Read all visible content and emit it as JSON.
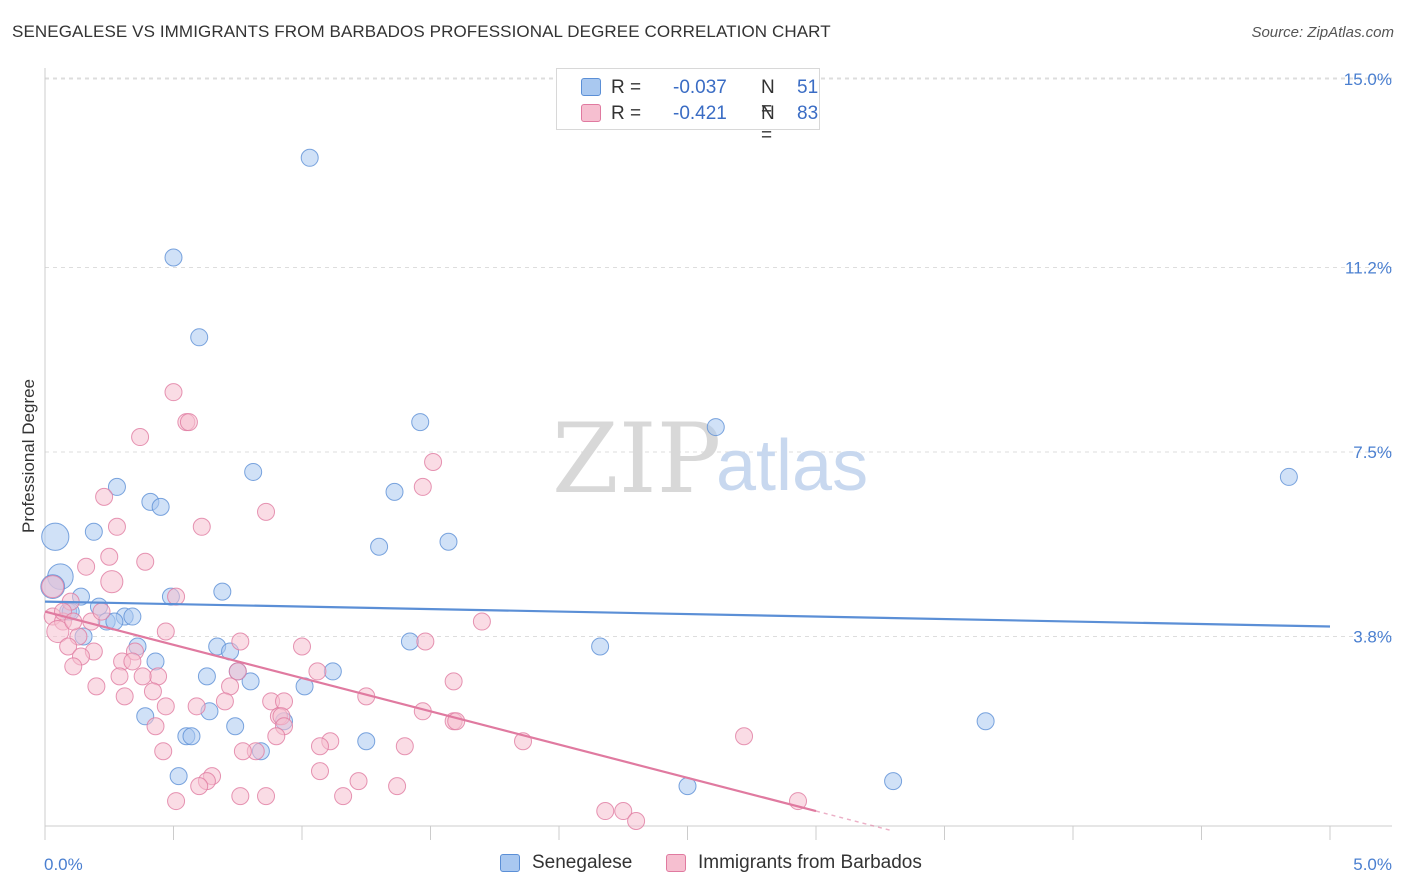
{
  "title": "SENEGALESE VS IMMIGRANTS FROM BARBADOS PROFESSIONAL DEGREE CORRELATION CHART",
  "source": "Source: ZipAtlas.com",
  "watermark": {
    "zip": "ZIP",
    "atlas": "atlas"
  },
  "legend": {
    "r_label": "R =",
    "n_label": "N =",
    "rows": [
      {
        "series": "Senegalese",
        "r": "-0.037",
        "n": "51",
        "color": "#a9c8f0",
        "edge": "#5b8fd6"
      },
      {
        "series": "Immigrants from Barbados",
        "r": "-0.421",
        "n": "83",
        "color": "#f6bfd0",
        "edge": "#e07aa0"
      }
    ]
  },
  "chart_data": {
    "type": "scatter",
    "title": "SENEGALESE VS IMMIGRANTS FROM BARBADOS PROFESSIONAL DEGREE CORRELATION CHART",
    "xlabel": "",
    "ylabel": "Professional Degree",
    "xlim": [
      0.0,
      5.0
    ],
    "ylim": [
      0.0,
      15.0
    ],
    "x_tick_labels": [
      "0.0%",
      "5.0%"
    ],
    "y_ticks": [
      3.8,
      7.5,
      11.2,
      15.0
    ],
    "y_tick_labels": [
      "3.8%",
      "7.5%",
      "11.2%",
      "15.0%"
    ],
    "grid": true,
    "legend_position": "top-center",
    "series": [
      {
        "name": "Senegalese",
        "color": "#5b8fd6",
        "fill": "#a9c8f0",
        "trend": {
          "x": [
            0.0,
            5.0
          ],
          "y": [
            4.5,
            4.0
          ]
        },
        "points": [
          {
            "x": 1.03,
            "y": 13.4
          },
          {
            "x": 0.5,
            "y": 11.4
          },
          {
            "x": 0.6,
            "y": 9.8
          },
          {
            "x": 1.46,
            "y": 8.1
          },
          {
            "x": 2.61,
            "y": 8.0
          },
          {
            "x": 4.84,
            "y": 7.0
          },
          {
            "x": 0.81,
            "y": 7.1
          },
          {
            "x": 0.28,
            "y": 6.8
          },
          {
            "x": 1.36,
            "y": 6.7
          },
          {
            "x": 0.41,
            "y": 6.5
          },
          {
            "x": 0.45,
            "y": 6.4
          },
          {
            "x": 0.19,
            "y": 5.9
          },
          {
            "x": 1.57,
            "y": 5.7
          },
          {
            "x": 1.3,
            "y": 5.6
          },
          {
            "x": 0.04,
            "y": 5.8,
            "s": 1.6
          },
          {
            "x": 0.06,
            "y": 5.0,
            "s": 1.5
          },
          {
            "x": 0.03,
            "y": 4.8,
            "s": 1.4
          },
          {
            "x": 0.69,
            "y": 4.7
          },
          {
            "x": 0.49,
            "y": 4.6
          },
          {
            "x": 0.14,
            "y": 4.6
          },
          {
            "x": 0.21,
            "y": 4.4
          },
          {
            "x": 0.09,
            "y": 4.3
          },
          {
            "x": 0.31,
            "y": 4.2
          },
          {
            "x": 0.34,
            "y": 4.2
          },
          {
            "x": 0.24,
            "y": 4.1
          },
          {
            "x": 0.27,
            "y": 4.1
          },
          {
            "x": 0.15,
            "y": 3.8
          },
          {
            "x": 1.42,
            "y": 3.7
          },
          {
            "x": 2.16,
            "y": 3.6
          },
          {
            "x": 0.36,
            "y": 3.6
          },
          {
            "x": 0.67,
            "y": 3.6
          },
          {
            "x": 0.72,
            "y": 3.5
          },
          {
            "x": 0.43,
            "y": 3.3
          },
          {
            "x": 0.75,
            "y": 3.1
          },
          {
            "x": 1.12,
            "y": 3.1
          },
          {
            "x": 0.63,
            "y": 3.0
          },
          {
            "x": 0.8,
            "y": 2.9
          },
          {
            "x": 1.01,
            "y": 2.8
          },
          {
            "x": 0.64,
            "y": 2.3
          },
          {
            "x": 0.39,
            "y": 2.2
          },
          {
            "x": 3.66,
            "y": 2.1
          },
          {
            "x": 0.93,
            "y": 2.1
          },
          {
            "x": 0.74,
            "y": 2.0
          },
          {
            "x": 0.55,
            "y": 1.8
          },
          {
            "x": 0.57,
            "y": 1.8
          },
          {
            "x": 1.25,
            "y": 1.7
          },
          {
            "x": 0.84,
            "y": 1.5
          },
          {
            "x": 0.52,
            "y": 1.0
          },
          {
            "x": 3.3,
            "y": 0.9
          },
          {
            "x": 2.5,
            "y": 0.8
          },
          {
            "x": 0.1,
            "y": 4.3
          }
        ]
      },
      {
        "name": "Immigrants from Barbados",
        "color": "#e07aa0",
        "fill": "#f6bfd0",
        "trend": {
          "x": [
            0.0,
            3.0
          ],
          "y": [
            4.3,
            0.3
          ]
        },
        "trend_dash": {
          "x": [
            3.0,
            3.3
          ],
          "y": [
            0.3,
            -0.1
          ]
        },
        "points": [
          {
            "x": 0.5,
            "y": 8.7
          },
          {
            "x": 0.55,
            "y": 8.1
          },
          {
            "x": 0.56,
            "y": 8.1
          },
          {
            "x": 0.37,
            "y": 7.8
          },
          {
            "x": 1.51,
            "y": 7.3
          },
          {
            "x": 1.47,
            "y": 6.8
          },
          {
            "x": 0.23,
            "y": 6.6
          },
          {
            "x": 0.86,
            "y": 6.3
          },
          {
            "x": 0.28,
            "y": 6.0
          },
          {
            "x": 0.61,
            "y": 6.0
          },
          {
            "x": 0.25,
            "y": 5.4
          },
          {
            "x": 0.39,
            "y": 5.3
          },
          {
            "x": 0.16,
            "y": 5.2
          },
          {
            "x": 0.26,
            "y": 4.9,
            "s": 1.3
          },
          {
            "x": 0.03,
            "y": 4.8,
            "s": 1.3
          },
          {
            "x": 0.51,
            "y": 4.6
          },
          {
            "x": 0.1,
            "y": 4.5
          },
          {
            "x": 0.03,
            "y": 4.2
          },
          {
            "x": 0.07,
            "y": 4.1
          },
          {
            "x": 0.18,
            "y": 4.1
          },
          {
            "x": 1.7,
            "y": 4.1
          },
          {
            "x": 0.05,
            "y": 3.9,
            "s": 1.3
          },
          {
            "x": 0.47,
            "y": 3.9
          },
          {
            "x": 0.13,
            "y": 3.8
          },
          {
            "x": 0.76,
            "y": 3.7
          },
          {
            "x": 1.48,
            "y": 3.7
          },
          {
            "x": 0.09,
            "y": 3.6
          },
          {
            "x": 0.19,
            "y": 3.5
          },
          {
            "x": 0.35,
            "y": 3.5
          },
          {
            "x": 1.0,
            "y": 3.6
          },
          {
            "x": 0.14,
            "y": 3.4
          },
          {
            "x": 0.3,
            "y": 3.3
          },
          {
            "x": 0.34,
            "y": 3.3
          },
          {
            "x": 0.11,
            "y": 3.2
          },
          {
            "x": 0.75,
            "y": 3.1
          },
          {
            "x": 0.29,
            "y": 3.0
          },
          {
            "x": 0.44,
            "y": 3.0
          },
          {
            "x": 0.38,
            "y": 3.0
          },
          {
            "x": 1.06,
            "y": 3.1
          },
          {
            "x": 1.59,
            "y": 2.9
          },
          {
            "x": 0.72,
            "y": 2.8
          },
          {
            "x": 0.2,
            "y": 2.8
          },
          {
            "x": 0.42,
            "y": 2.7
          },
          {
            "x": 1.25,
            "y": 2.6
          },
          {
            "x": 0.31,
            "y": 2.6
          },
          {
            "x": 0.88,
            "y": 2.5
          },
          {
            "x": 0.93,
            "y": 2.5
          },
          {
            "x": 0.47,
            "y": 2.4
          },
          {
            "x": 0.59,
            "y": 2.4
          },
          {
            "x": 0.7,
            "y": 2.5
          },
          {
            "x": 1.47,
            "y": 2.3
          },
          {
            "x": 0.91,
            "y": 2.2
          },
          {
            "x": 0.92,
            "y": 2.2
          },
          {
            "x": 1.59,
            "y": 2.1
          },
          {
            "x": 1.6,
            "y": 2.1
          },
          {
            "x": 0.43,
            "y": 2.0
          },
          {
            "x": 0.93,
            "y": 2.0
          },
          {
            "x": 2.72,
            "y": 1.8
          },
          {
            "x": 0.9,
            "y": 1.8
          },
          {
            "x": 1.11,
            "y": 1.7
          },
          {
            "x": 1.86,
            "y": 1.7
          },
          {
            "x": 1.07,
            "y": 1.6
          },
          {
            "x": 1.4,
            "y": 1.6
          },
          {
            "x": 0.46,
            "y": 1.5
          },
          {
            "x": 0.82,
            "y": 1.5
          },
          {
            "x": 0.77,
            "y": 1.5
          },
          {
            "x": 1.07,
            "y": 1.1
          },
          {
            "x": 0.65,
            "y": 1.0
          },
          {
            "x": 0.63,
            "y": 0.9
          },
          {
            "x": 0.6,
            "y": 0.8
          },
          {
            "x": 1.22,
            "y": 0.9
          },
          {
            "x": 1.37,
            "y": 0.8
          },
          {
            "x": 0.76,
            "y": 0.6
          },
          {
            "x": 0.86,
            "y": 0.6
          },
          {
            "x": 1.16,
            "y": 0.6
          },
          {
            "x": 0.51,
            "y": 0.5
          },
          {
            "x": 2.93,
            "y": 0.5
          },
          {
            "x": 2.18,
            "y": 0.3
          },
          {
            "x": 2.25,
            "y": 0.3
          },
          {
            "x": 2.3,
            "y": 0.1
          },
          {
            "x": 0.07,
            "y": 4.3
          },
          {
            "x": 0.11,
            "y": 4.1
          },
          {
            "x": 0.22,
            "y": 4.3
          }
        ]
      }
    ]
  }
}
